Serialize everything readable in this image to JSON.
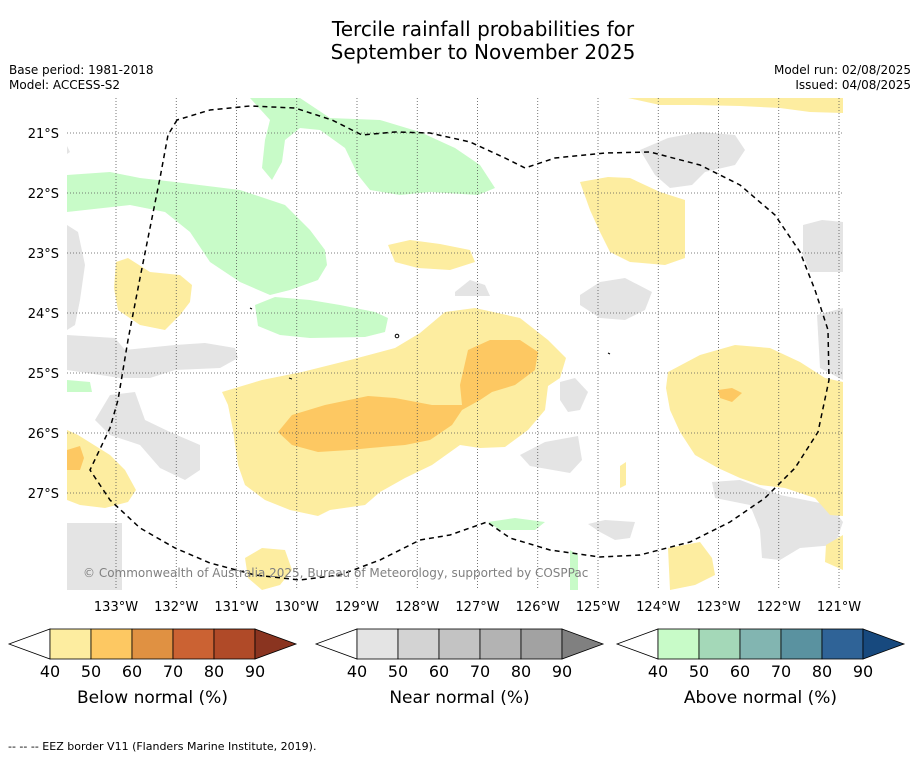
{
  "title_line1": "Tercile rainfall probabilities for",
  "title_line2": "September to November 2025",
  "base_period": "Base period: 1981-2018",
  "model": "Model: ACCESS-S2",
  "model_run": "Model run: 02/08/2025",
  "issued": "Issued: 04/08/2025",
  "copyright": "© Commonwealth of Australia 2025, Bureau of Meteorology, supported by COSPPac",
  "lat_labels": [
    "21°S",
    "22°S",
    "23°S",
    "24°S",
    "25°S",
    "26°S",
    "27°S"
  ],
  "lon_labels": [
    "133°W",
    "132°W",
    "131°W",
    "130°W",
    "129°W",
    "128°W",
    "127°W",
    "126°W",
    "125°W",
    "124°W",
    "123°W",
    "122°W",
    "121°W"
  ],
  "colorbars": [
    {
      "title": "Below normal (%)",
      "ticks": [
        "40",
        "50",
        "60",
        "70",
        "80",
        "90"
      ],
      "colors": [
        "#fdeda0",
        "#fdc862",
        "#e09142",
        "#cb6233",
        "#b04a28",
        "#8a3420"
      ]
    },
    {
      "title": "Near normal (%)",
      "ticks": [
        "40",
        "50",
        "60",
        "70",
        "80",
        "90"
      ],
      "colors": [
        "#e4e4e4",
        "#d3d3d3",
        "#c3c3c3",
        "#b3b3b3",
        "#a2a2a2",
        "#808080"
      ]
    },
    {
      "title": "Above normal (%)",
      "ticks": [
        "40",
        "50",
        "60",
        "70",
        "80",
        "90"
      ],
      "colors": [
        "#c8fbc8",
        "#a4d8b8",
        "#82b5b1",
        "#5a92a0",
        "#2f6397",
        "#17497e"
      ]
    }
  ],
  "legend_eez": "--  --  -- EEZ border V11 (Flanders Marine Institute, 2019)."
}
